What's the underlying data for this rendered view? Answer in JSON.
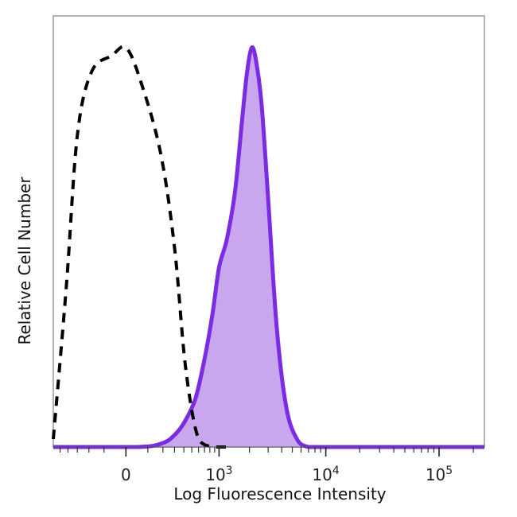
{
  "chart_data": {
    "type": "area",
    "title": "",
    "xlabel": "Log Fluorescence Intensity",
    "ylabel": "Relative Cell Number",
    "x_scale": "biexponential",
    "xlim": [
      -600,
      250000
    ],
    "ylim": [
      0,
      100
    ],
    "x_ticks": [
      {
        "value": 0,
        "base": "0",
        "exp": ""
      },
      {
        "value": 1000,
        "base": "10",
        "exp": "3"
      },
      {
        "value": 10000,
        "base": "10",
        "exp": "4"
      },
      {
        "value": 100000,
        "base": "10",
        "exp": "5"
      }
    ],
    "grid": false,
    "legend": "none",
    "series": [
      {
        "style": "dashed",
        "color": "#000000",
        "fill": false,
        "x": [
          -600,
          -420,
          -300,
          -180,
          -60,
          0,
          60,
          180,
          300,
          420,
          600,
          900,
          1200
        ],
        "y": [
          2,
          40,
          78,
          94,
          98,
          100,
          92,
          74,
          50,
          20,
          2,
          0,
          0
        ]
      },
      {
        "style": "solid",
        "color": "#7b2be2",
        "fill": true,
        "fill_color": "#c9a7ef",
        "x": [
          -600,
          50,
          200,
          300,
          400,
          550,
          700,
          850,
          1000,
          1200,
          1450,
          1700,
          1900,
          2100,
          2300,
          2600,
          3000,
          3600,
          4400,
          5500,
          7000,
          10000,
          30000,
          100000,
          250000
        ],
        "y": [
          0,
          0,
          1,
          3,
          6,
          12,
          22,
          33,
          45,
          52,
          64,
          82,
          94,
          100,
          97,
          86,
          62,
          30,
          10,
          2,
          0,
          0,
          0,
          0,
          0
        ]
      }
    ]
  }
}
